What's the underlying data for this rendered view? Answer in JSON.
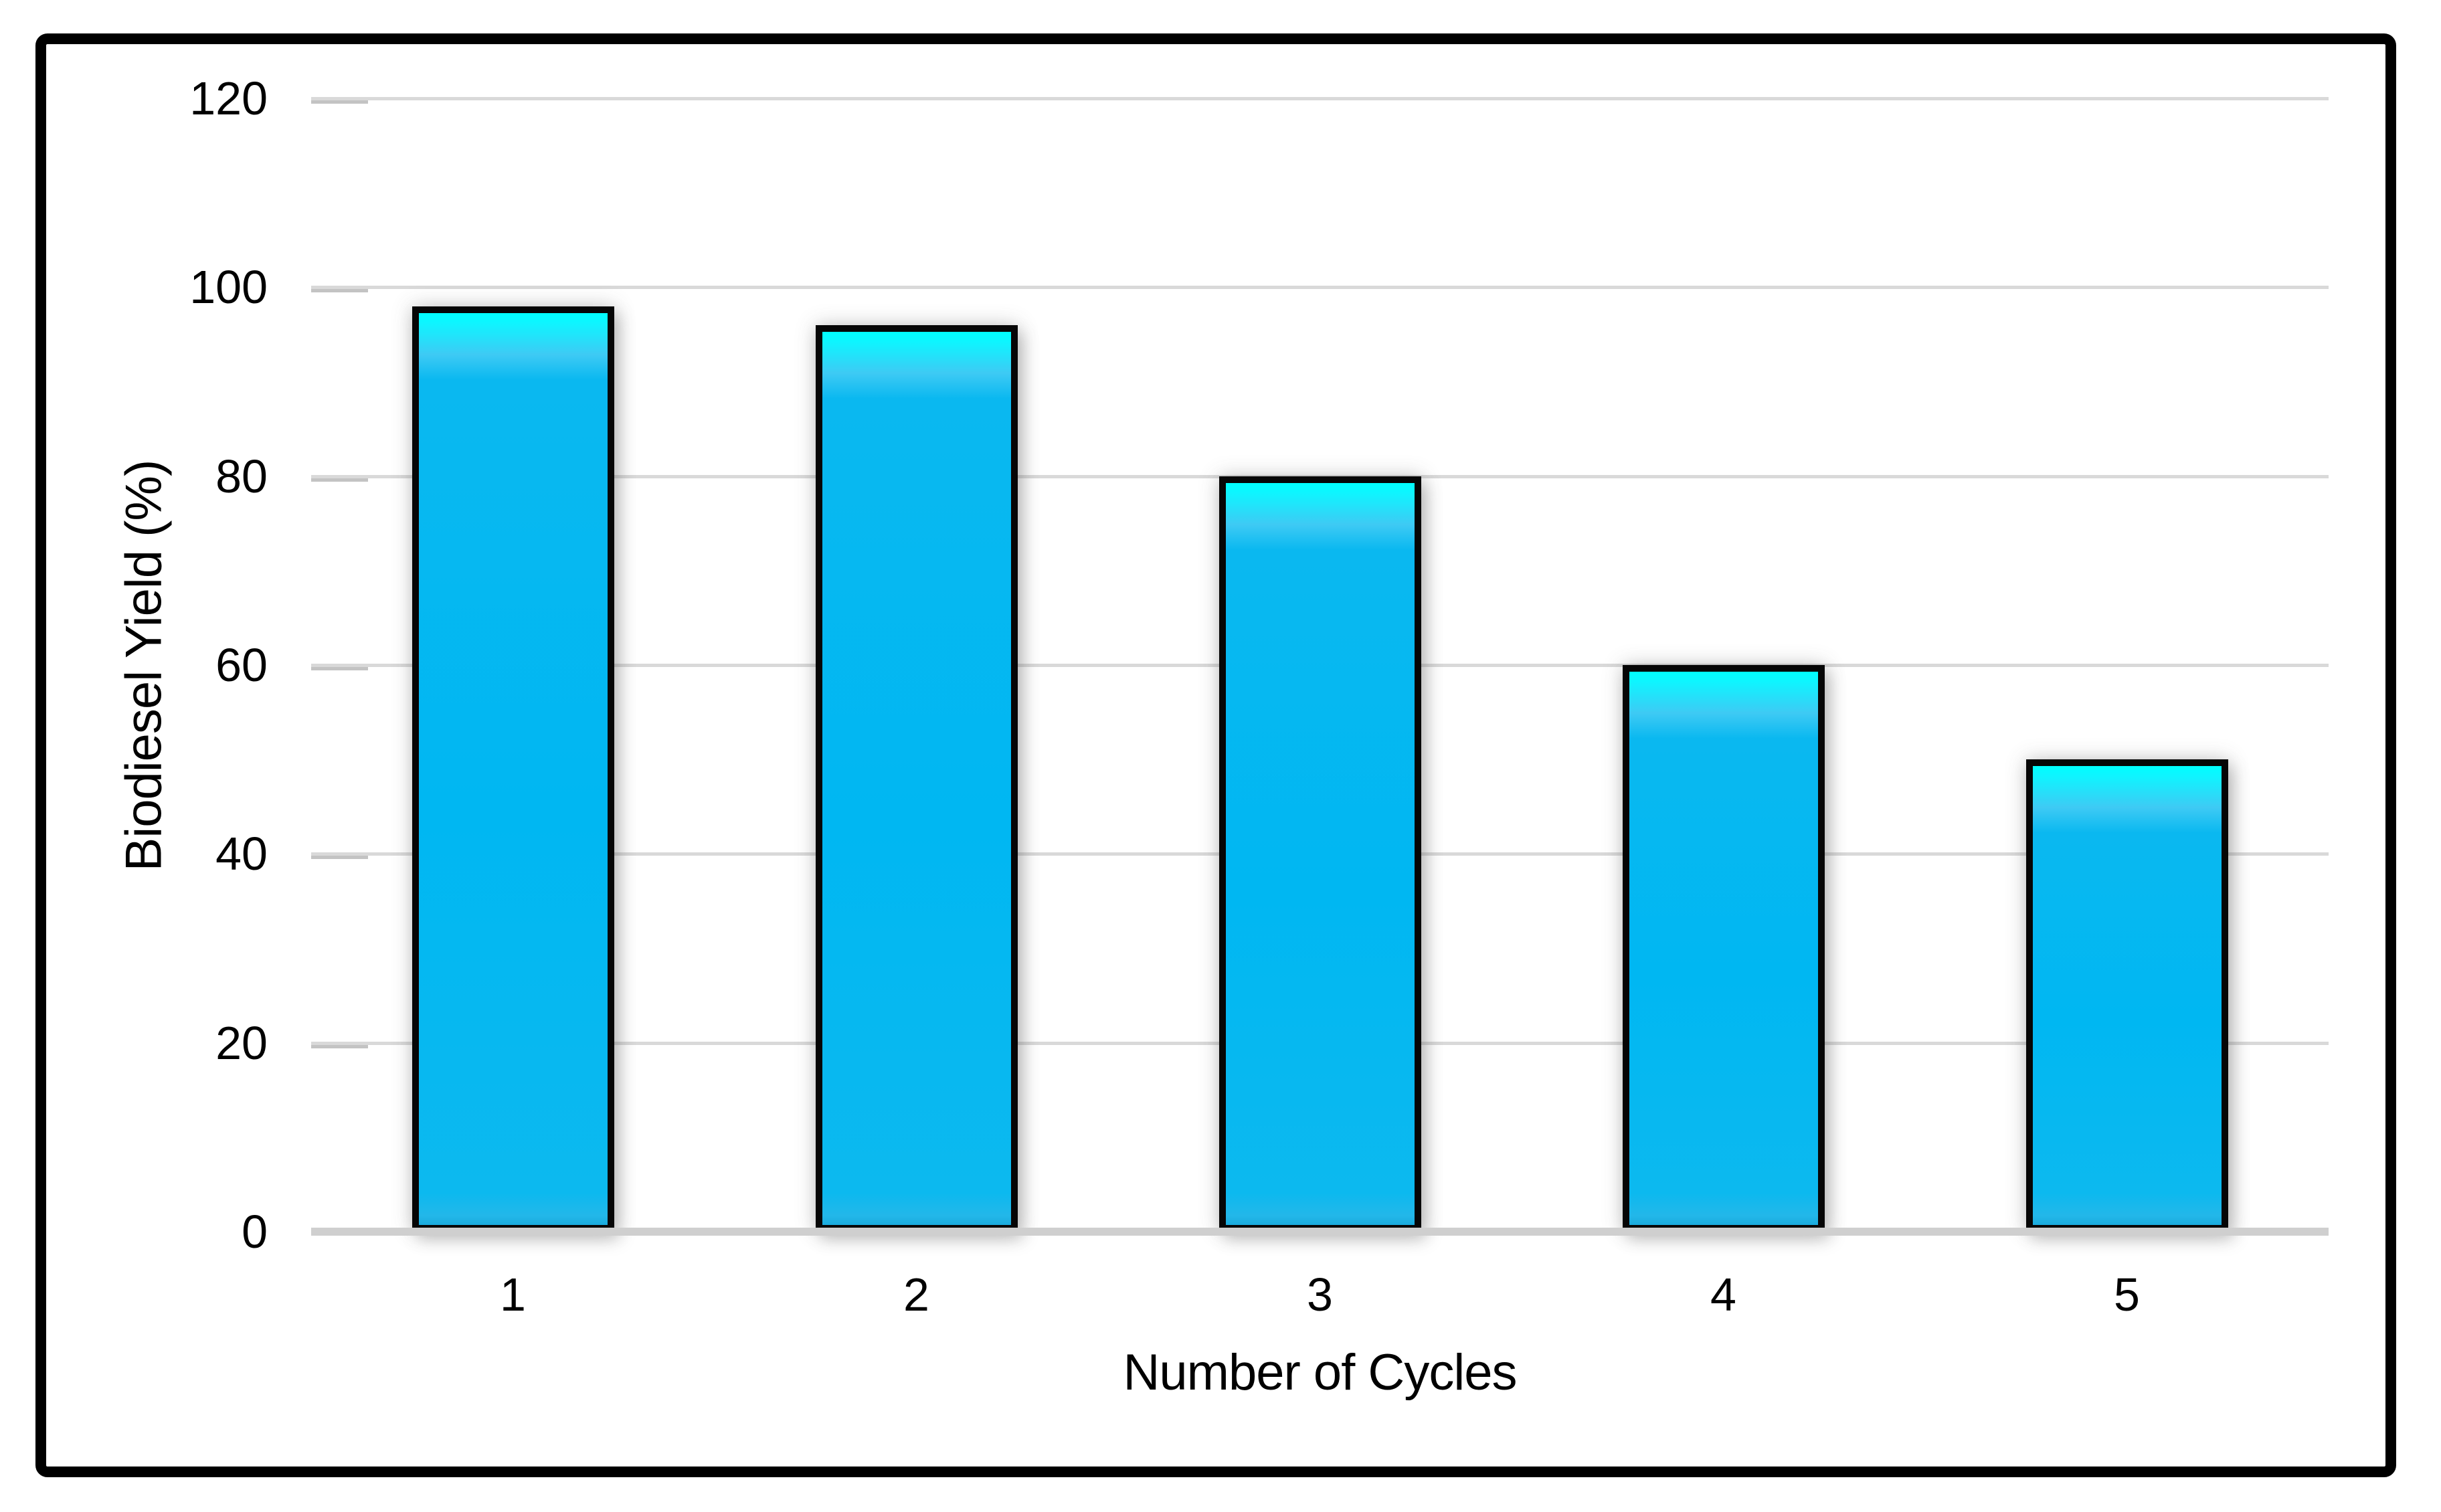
{
  "chart_data": {
    "type": "bar",
    "title": "",
    "categories": [
      "1",
      "2",
      "3",
      "4",
      "5"
    ],
    "values": [
      98,
      96,
      80,
      60,
      50
    ],
    "xlabel": "Number of Cycles",
    "ylabel": "Biodiesel Yield (%)",
    "ylim": [
      0,
      120
    ],
    "y_ticks": [
      0,
      20,
      40,
      60,
      80,
      100,
      120
    ],
    "grid": "horizontal-only",
    "legend_position": "none",
    "colors": {
      "bar_fill": "#00B7F2",
      "bar_top_highlight": "#00FFFF",
      "bar_border": "#000000",
      "gridline": "#D9D9D9",
      "axis_baseline": "#CFCFCF",
      "frame_border": "#000000",
      "text": "#000000",
      "background": "#FFFFFF"
    }
  }
}
